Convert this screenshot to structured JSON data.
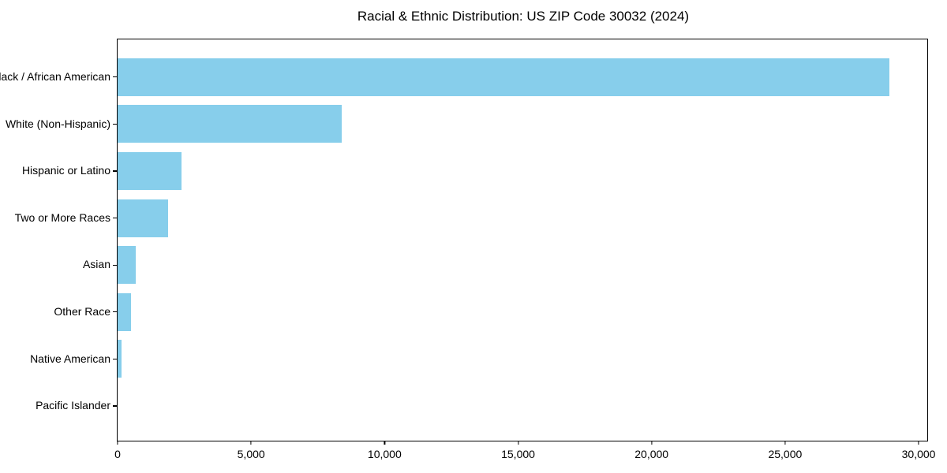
{
  "title": "Racial & Ethnic Distribution: US ZIP Code 30032 (2024)",
  "colors": {
    "bar": "#87CEEB",
    "axis": "#000000",
    "text": "#000000",
    "background": "#FFFFFF"
  },
  "chart_data": {
    "type": "bar",
    "orientation": "horizontal",
    "title": "Racial & Ethnic Distribution: US ZIP Code 30032 (2024)",
    "categories": [
      "Black / African American",
      "White (Non-Hispanic)",
      "Hispanic or Latino",
      "Two or More Races",
      "Asian",
      "Other Race",
      "Native American",
      "Pacific Islander"
    ],
    "values": [
      28900,
      8400,
      2400,
      1900,
      680,
      500,
      150,
      0
    ],
    "xlabel": "",
    "ylabel": "",
    "xlim": [
      0,
      30324
    ],
    "xticks": {
      "values": [
        0,
        5000,
        10000,
        15000,
        20000,
        25000,
        30000
      ],
      "labels": [
        "0",
        "5,000",
        "10,000",
        "15,000",
        "20,000",
        "25,000",
        "30,000"
      ]
    },
    "bar_color": "#87CEEB",
    "grid": false,
    "legend": null
  }
}
